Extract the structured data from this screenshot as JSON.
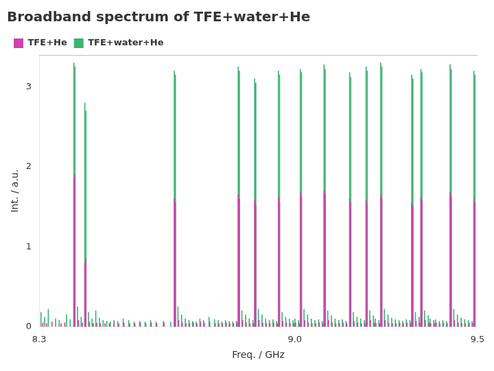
{
  "chart_data": {
    "type": "bar",
    "title": "Broadband spectrum of TFE+water+He",
    "x_label": "Freq. / GHz",
    "y_label": "Int. / a.u.",
    "xlim": [
      8.3,
      9.5
    ],
    "ylim": [
      0,
      3.4
    ],
    "xticks": [
      8.3,
      {
        "value": 9.0,
        "label": "9.0"
      },
      9.5
    ],
    "yticks": [
      0,
      1,
      2,
      3
    ],
    "grid": false,
    "legend": "upper left",
    "series": [
      {
        "name": "TFE+water+He",
        "color": "#3cb371",
        "x": [
          8.305,
          8.315,
          8.325,
          8.345,
          8.355,
          8.375,
          8.385,
          8.395,
          8.398,
          8.405,
          8.415,
          8.425,
          8.428,
          8.435,
          8.445,
          8.455,
          8.465,
          8.475,
          8.485,
          8.495,
          8.505,
          8.515,
          8.53,
          8.545,
          8.56,
          8.575,
          8.59,
          8.605,
          8.62,
          8.64,
          8.66,
          8.67,
          8.673,
          8.68,
          8.69,
          8.7,
          8.71,
          8.72,
          8.73,
          8.74,
          8.75,
          8.765,
          8.78,
          8.79,
          8.8,
          8.81,
          8.82,
          8.83,
          8.84,
          8.845,
          8.848,
          8.855,
          8.865,
          8.875,
          8.885,
          8.89,
          8.893,
          8.9,
          8.91,
          8.92,
          8.93,
          8.94,
          8.95,
          8.955,
          8.958,
          8.965,
          8.975,
          8.985,
          8.995,
          9.0,
          9.01,
          9.015,
          9.018,
          9.025,
          9.035,
          9.045,
          9.055,
          9.065,
          9.075,
          9.08,
          9.083,
          9.09,
          9.1,
          9.11,
          9.12,
          9.13,
          9.14,
          9.15,
          9.153,
          9.16,
          9.17,
          9.18,
          9.19,
          9.195,
          9.198,
          9.205,
          9.215,
          9.22,
          9.23,
          9.235,
          9.238,
          9.245,
          9.255,
          9.265,
          9.275,
          9.285,
          9.295,
          9.305,
          9.315,
          9.32,
          9.323,
          9.33,
          9.34,
          9.345,
          9.348,
          9.355,
          9.365,
          9.37,
          9.38,
          9.385,
          9.395,
          9.405,
          9.415,
          9.425,
          9.428,
          9.435,
          9.445,
          9.455,
          9.465,
          9.475,
          9.485,
          9.49,
          9.493
        ],
        "values": [
          0.18,
          0.12,
          0.22,
          0.1,
          0.08,
          0.15,
          0.09,
          3.3,
          3.25,
          0.25,
          0.12,
          2.8,
          2.7,
          0.18,
          0.1,
          0.2,
          0.11,
          0.08,
          0.07,
          0.06,
          0.08,
          0.07,
          0.1,
          0.08,
          0.06,
          0.07,
          0.06,
          0.08,
          0.06,
          0.07,
          0.06,
          3.2,
          3.15,
          0.25,
          0.15,
          0.1,
          0.08,
          0.07,
          0.06,
          0.1,
          0.08,
          0.12,
          0.09,
          0.08,
          0.06,
          0.08,
          0.07,
          0.06,
          0.07,
          3.25,
          3.2,
          0.2,
          0.15,
          0.1,
          0.08,
          3.1,
          3.05,
          0.22,
          0.15,
          0.1,
          0.08,
          0.09,
          0.07,
          3.2,
          3.15,
          0.18,
          0.12,
          0.1,
          0.08,
          0.1,
          0.08,
          3.22,
          3.18,
          0.22,
          0.15,
          0.1,
          0.08,
          0.09,
          0.07,
          3.28,
          3.22,
          0.2,
          0.14,
          0.1,
          0.08,
          0.09,
          0.07,
          3.18,
          3.12,
          0.18,
          0.12,
          0.1,
          0.08,
          3.25,
          3.2,
          0.2,
          0.14,
          0.1,
          0.08,
          3.3,
          3.25,
          0.22,
          0.15,
          0.11,
          0.09,
          0.08,
          0.07,
          0.09,
          0.08,
          3.15,
          3.1,
          0.18,
          0.12,
          3.22,
          3.18,
          0.2,
          0.14,
          0.1,
          0.08,
          0.09,
          0.07,
          0.08,
          0.07,
          3.28,
          3.22,
          0.22,
          0.15,
          0.11,
          0.09,
          0.08,
          0.07,
          3.2,
          3.15
        ]
      },
      {
        "name": "TFE+He",
        "color": "#cc44aa",
        "x": [
          8.31,
          8.32,
          8.335,
          8.36,
          8.37,
          8.395,
          8.398,
          8.408,
          8.418,
          8.425,
          8.428,
          8.438,
          8.448,
          8.458,
          8.468,
          8.48,
          8.492,
          8.505,
          8.518,
          8.532,
          8.548,
          8.562,
          8.577,
          8.592,
          8.607,
          8.622,
          8.642,
          8.67,
          8.673,
          8.682,
          8.692,
          8.702,
          8.712,
          8.722,
          8.732,
          8.742,
          8.752,
          8.767,
          8.782,
          8.792,
          8.802,
          8.812,
          8.822,
          8.832,
          8.842,
          8.845,
          8.848,
          8.857,
          8.867,
          8.877,
          8.887,
          8.89,
          8.893,
          8.902,
          8.912,
          8.922,
          8.932,
          8.942,
          8.952,
          8.955,
          8.958,
          8.967,
          8.977,
          8.987,
          8.997,
          9.002,
          9.012,
          9.015,
          9.018,
          9.027,
          9.037,
          9.047,
          9.057,
          9.067,
          9.077,
          9.08,
          9.083,
          9.092,
          9.102,
          9.112,
          9.122,
          9.132,
          9.142,
          9.15,
          9.153,
          9.162,
          9.172,
          9.182,
          9.192,
          9.195,
          9.198,
          9.207,
          9.217,
          9.222,
          9.232,
          9.235,
          9.238,
          9.247,
          9.257,
          9.267,
          9.277,
          9.287,
          9.297,
          9.307,
          9.317,
          9.32,
          9.323,
          9.332,
          9.342,
          9.345,
          9.348,
          9.357,
          9.367,
          9.372,
          9.382,
          9.387,
          9.397,
          9.407,
          9.417,
          9.425,
          9.428,
          9.437,
          9.447,
          9.457,
          9.467,
          9.477,
          9.487,
          9.49,
          9.493
        ],
        "values": [
          0.05,
          0.04,
          0.06,
          0.04,
          0.05,
          1.85,
          1.9,
          0.08,
          0.05,
          0.8,
          0.85,
          0.06,
          0.04,
          0.05,
          0.04,
          0.04,
          0.04,
          0.05,
          0.04,
          0.05,
          0.04,
          0.04,
          0.05,
          0.04,
          0.05,
          0.04,
          0.05,
          1.6,
          1.55,
          0.08,
          0.05,
          0.04,
          0.04,
          0.05,
          0.04,
          0.06,
          0.05,
          0.06,
          0.04,
          0.04,
          0.04,
          0.05,
          0.04,
          0.04,
          0.05,
          1.65,
          1.6,
          0.08,
          0.05,
          0.04,
          0.04,
          1.58,
          1.52,
          0.08,
          0.05,
          0.04,
          0.04,
          0.05,
          0.04,
          1.62,
          1.55,
          0.07,
          0.05,
          0.04,
          0.04,
          0.05,
          0.04,
          1.68,
          1.62,
          0.08,
          0.05,
          0.04,
          0.04,
          0.05,
          0.04,
          1.7,
          1.65,
          0.08,
          0.05,
          0.04,
          0.04,
          0.05,
          0.04,
          1.6,
          1.55,
          0.07,
          0.05,
          0.04,
          0.04,
          1.58,
          1.52,
          0.08,
          0.05,
          0.04,
          0.04,
          1.65,
          1.6,
          0.08,
          0.05,
          0.04,
          0.04,
          0.05,
          0.04,
          0.05,
          0.04,
          1.55,
          1.5,
          0.07,
          0.05,
          1.62,
          1.58,
          0.08,
          0.05,
          0.04,
          0.04,
          0.05,
          0.04,
          0.05,
          0.04,
          1.68,
          1.62,
          0.08,
          0.05,
          0.04,
          0.04,
          0.05,
          0.04,
          1.6,
          1.55
        ]
      }
    ]
  }
}
